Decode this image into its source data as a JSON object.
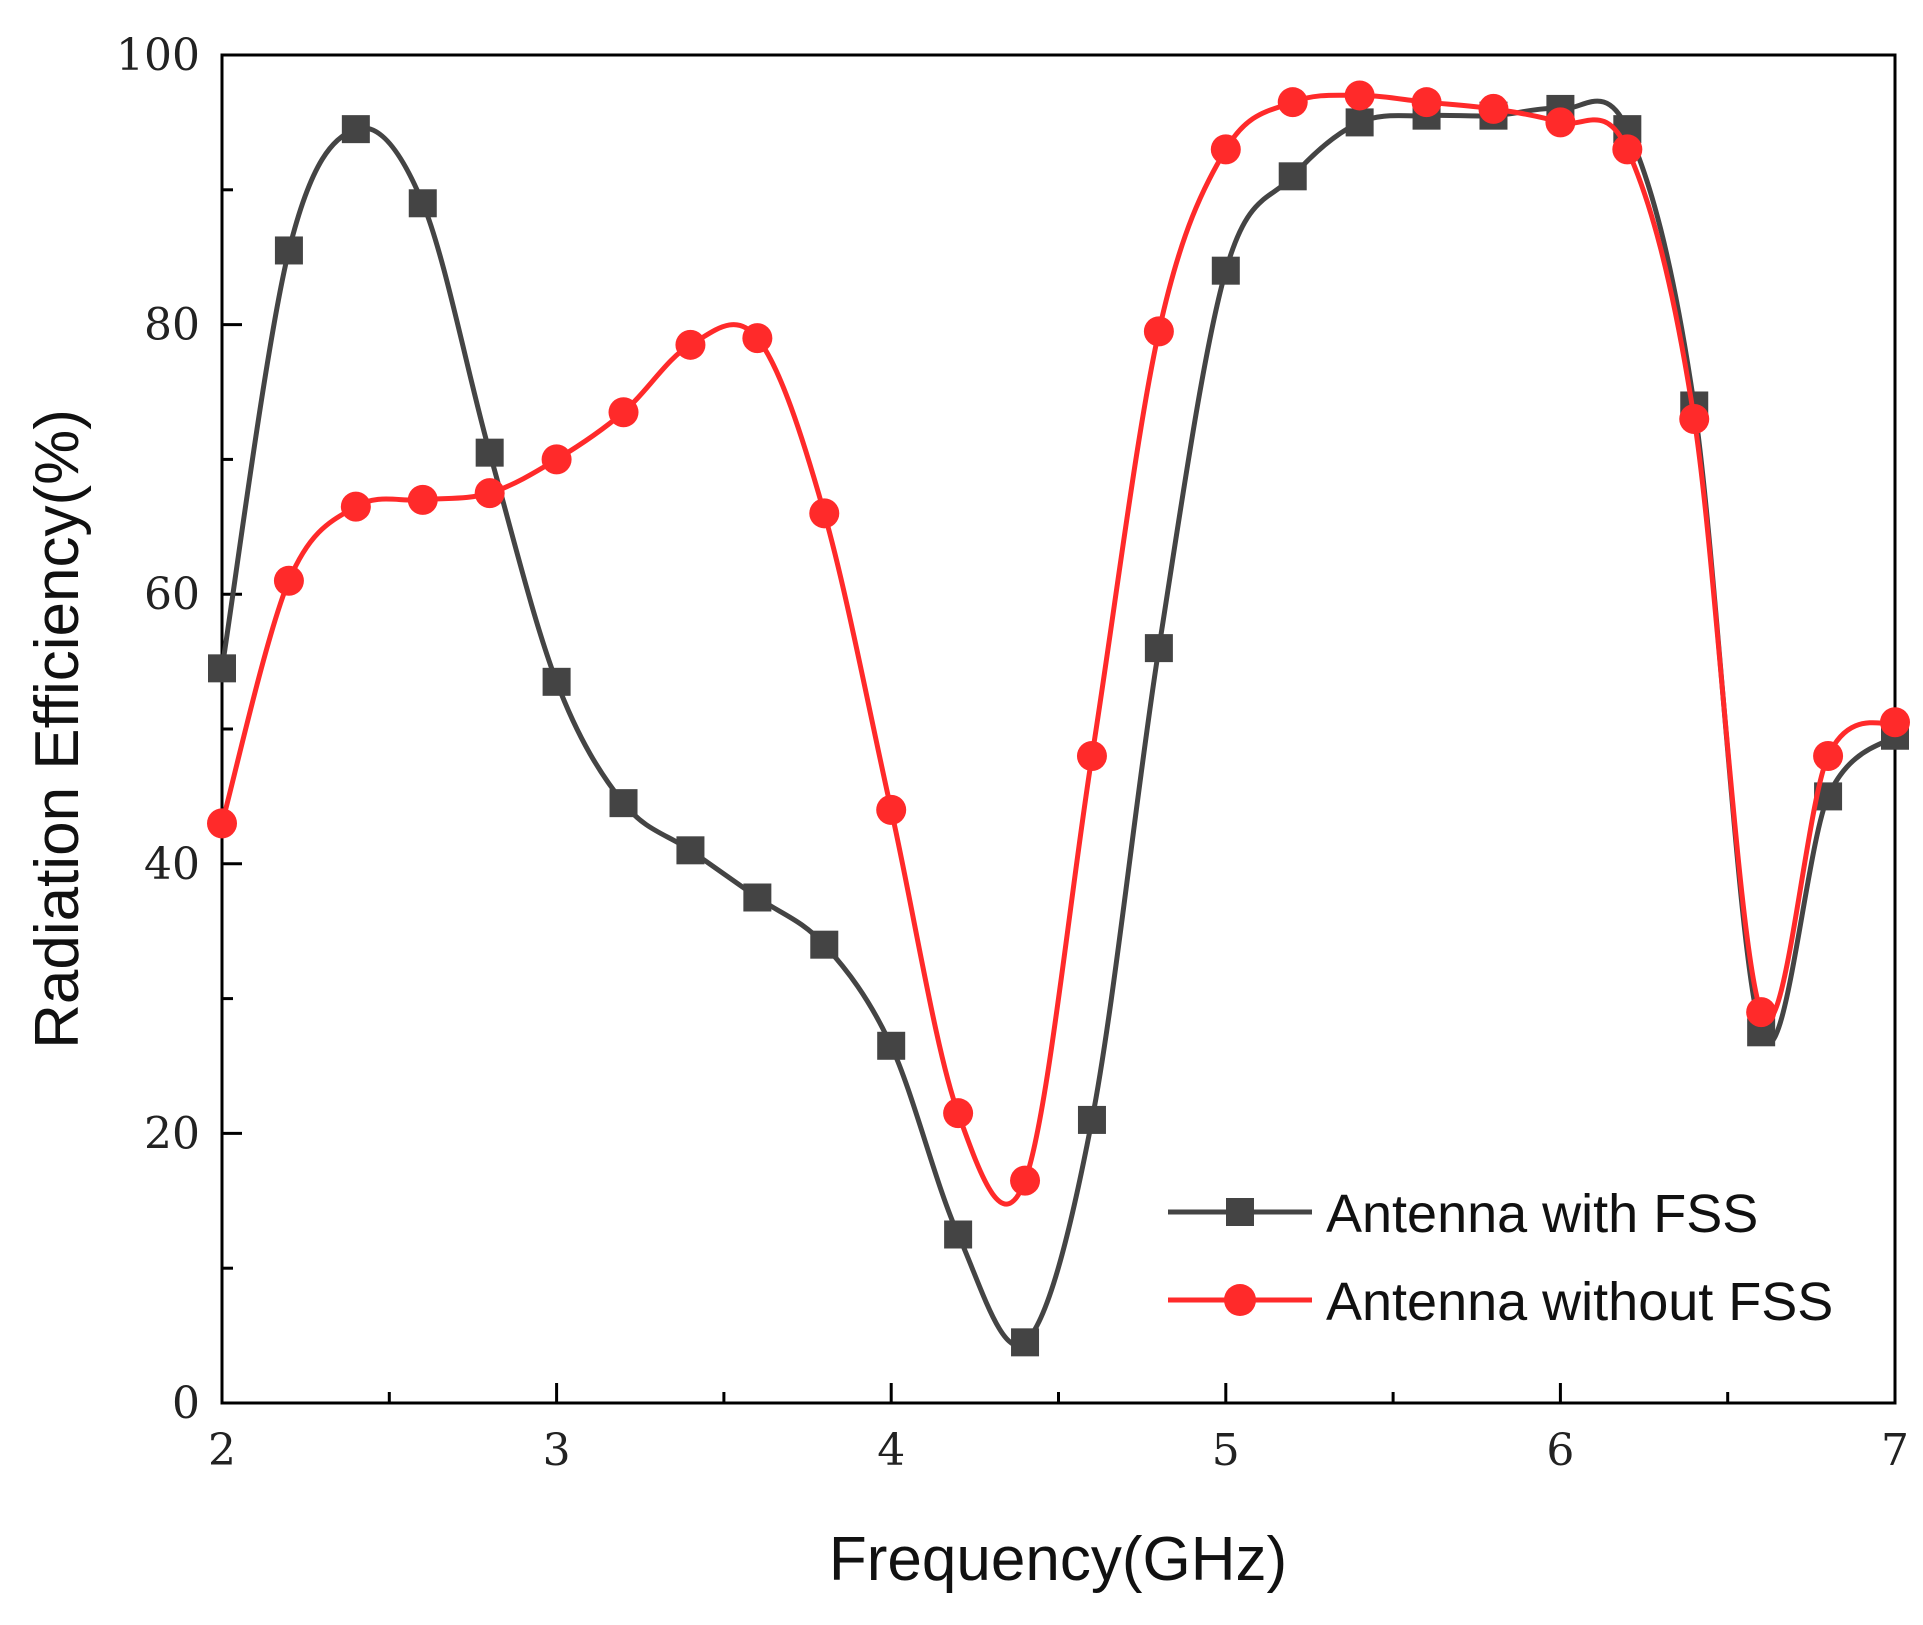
{
  "chart_data": {
    "type": "line",
    "title": "",
    "xlabel": "Frequency(GHz)",
    "ylabel": "Radiation Efficiency(%)",
    "xlim": [
      2,
      7
    ],
    "ylim": [
      0,
      100
    ],
    "xticks": [
      2,
      3,
      4,
      5,
      6,
      7
    ],
    "xtick_labels": [
      "2",
      "3",
      "4",
      "5",
      "6",
      "7"
    ],
    "yticks": [
      0,
      20,
      40,
      60,
      80,
      100
    ],
    "ytick_labels": [
      "0",
      "20",
      "40",
      "60",
      "80",
      "100"
    ],
    "grid": false,
    "legend_position": "bottom-right",
    "series": [
      {
        "name": "Antenna with FSS",
        "color": "#444444",
        "marker": "square",
        "x": [
          2.0,
          2.2,
          2.4,
          2.6,
          2.8,
          3.0,
          3.2,
          3.4,
          3.6,
          3.8,
          4.0,
          4.2,
          4.4,
          4.6,
          4.8,
          5.0,
          5.2,
          5.4,
          5.6,
          5.8,
          6.0,
          6.2,
          6.4,
          6.6,
          6.8,
          7.0
        ],
        "values": [
          54.5,
          85.5,
          94.5,
          89,
          70.5,
          53.5,
          44.5,
          41,
          37.5,
          34,
          26.5,
          12.5,
          4.5,
          21,
          56,
          84,
          91,
          95,
          95.5,
          95.5,
          96,
          94.5,
          74,
          27.5,
          45,
          49.5
        ]
      },
      {
        "name": "Antenna without FSS",
        "color": "#ff2a2a",
        "marker": "circle",
        "x": [
          2.0,
          2.2,
          2.4,
          2.6,
          2.8,
          3.0,
          3.2,
          3.4,
          3.6,
          3.8,
          4.0,
          4.2,
          4.4,
          4.6,
          4.8,
          5.0,
          5.2,
          5.4,
          5.6,
          5.8,
          6.0,
          6.2,
          6.4,
          6.6,
          6.8,
          7.0
        ],
        "values": [
          43,
          61,
          66.5,
          67,
          67.5,
          70,
          73.5,
          78.5,
          79,
          66,
          44,
          21.5,
          16.5,
          48,
          79.5,
          93,
          96.5,
          97,
          96.5,
          96,
          95,
          93,
          73,
          29,
          48,
          50.5
        ]
      }
    ]
  }
}
